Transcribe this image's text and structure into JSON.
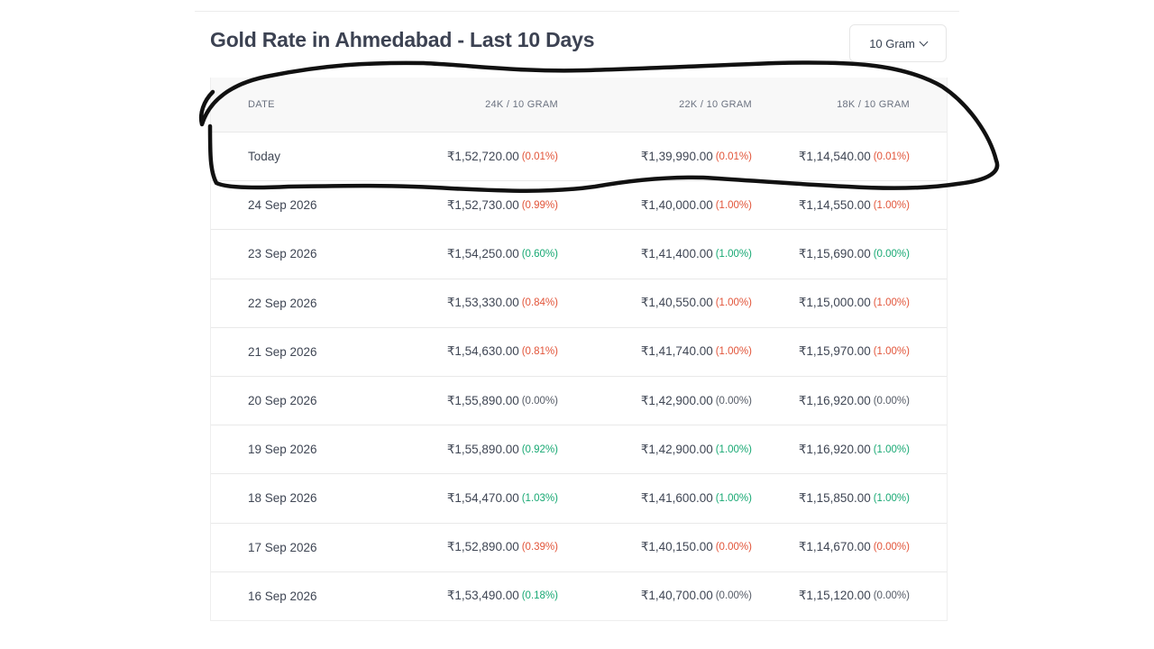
{
  "title": "Gold Rate in Ahmedabad - Last 10 Days",
  "unit_selector": {
    "selected": "10 Gram",
    "icon": "chevron-down-icon"
  },
  "table": {
    "headers": [
      "DATE",
      "24K / 10 GRAM",
      "22K / 10 GRAM",
      "18K / 10 GRAM"
    ],
    "rows": [
      {
        "date": "Today",
        "k24": {
          "price": "₹1,52,720.00",
          "change": "(0.01%)",
          "trend": "down"
        },
        "k22": {
          "price": "₹1,39,990.00",
          "change": "(0.01%)",
          "trend": "down"
        },
        "k18": {
          "price": "₹1,14,540.00",
          "change": "(0.01%)",
          "trend": "down"
        }
      },
      {
        "date": "24 Sep 2026",
        "k24": {
          "price": "₹1,52,730.00",
          "change": "(0.99%)",
          "trend": "down"
        },
        "k22": {
          "price": "₹1,40,000.00",
          "change": "(1.00%)",
          "trend": "down"
        },
        "k18": {
          "price": "₹1,14,550.00",
          "change": "(1.00%)",
          "trend": "down"
        }
      },
      {
        "date": "23 Sep 2026",
        "k24": {
          "price": "₹1,54,250.00",
          "change": "(0.60%)",
          "trend": "up"
        },
        "k22": {
          "price": "₹1,41,400.00",
          "change": "(1.00%)",
          "trend": "up"
        },
        "k18": {
          "price": "₹1,15,690.00",
          "change": "(0.00%)",
          "trend": "up"
        }
      },
      {
        "date": "22 Sep 2026",
        "k24": {
          "price": "₹1,53,330.00",
          "change": "(0.84%)",
          "trend": "down"
        },
        "k22": {
          "price": "₹1,40,550.00",
          "change": "(1.00%)",
          "trend": "down"
        },
        "k18": {
          "price": "₹1,15,000.00",
          "change": "(1.00%)",
          "trend": "down"
        }
      },
      {
        "date": "21 Sep 2026",
        "k24": {
          "price": "₹1,54,630.00",
          "change": "(0.81%)",
          "trend": "down"
        },
        "k22": {
          "price": "₹1,41,740.00",
          "change": "(1.00%)",
          "trend": "down"
        },
        "k18": {
          "price": "₹1,15,970.00",
          "change": "(1.00%)",
          "trend": "down"
        }
      },
      {
        "date": "20 Sep 2026",
        "k24": {
          "price": "₹1,55,890.00",
          "change": "(0.00%)",
          "trend": "flat"
        },
        "k22": {
          "price": "₹1,42,900.00",
          "change": "(0.00%)",
          "trend": "flat"
        },
        "k18": {
          "price": "₹1,16,920.00",
          "change": "(0.00%)",
          "trend": "flat"
        }
      },
      {
        "date": "19 Sep 2026",
        "k24": {
          "price": "₹1,55,890.00",
          "change": "(0.92%)",
          "trend": "up"
        },
        "k22": {
          "price": "₹1,42,900.00",
          "change": "(1.00%)",
          "trend": "up"
        },
        "k18": {
          "price": "₹1,16,920.00",
          "change": "(1.00%)",
          "trend": "up"
        }
      },
      {
        "date": "18 Sep 2026",
        "k24": {
          "price": "₹1,54,470.00",
          "change": "(1.03%)",
          "trend": "up"
        },
        "k22": {
          "price": "₹1,41,600.00",
          "change": "(1.00%)",
          "trend": "up"
        },
        "k18": {
          "price": "₹1,15,850.00",
          "change": "(1.00%)",
          "trend": "up"
        }
      },
      {
        "date": "17 Sep 2026",
        "k24": {
          "price": "₹1,52,890.00",
          "change": "(0.39%)",
          "trend": "down"
        },
        "k22": {
          "price": "₹1,40,150.00",
          "change": "(0.00%)",
          "trend": "down"
        },
        "k18": {
          "price": "₹1,14,670.00",
          "change": "(0.00%)",
          "trend": "down"
        }
      },
      {
        "date": "16 Sep 2026",
        "k24": {
          "price": "₹1,53,490.00",
          "change": "(0.18%)",
          "trend": "up"
        },
        "k22": {
          "price": "₹1,40,700.00",
          "change": "(0.00%)",
          "trend": "flat"
        },
        "k18": {
          "price": "₹1,15,120.00",
          "change": "(0.00%)",
          "trend": "flat"
        }
      }
    ]
  },
  "colors": {
    "down": "#e2553a",
    "up": "#19a974",
    "flat": "#555b66",
    "annotation": "#111111"
  }
}
